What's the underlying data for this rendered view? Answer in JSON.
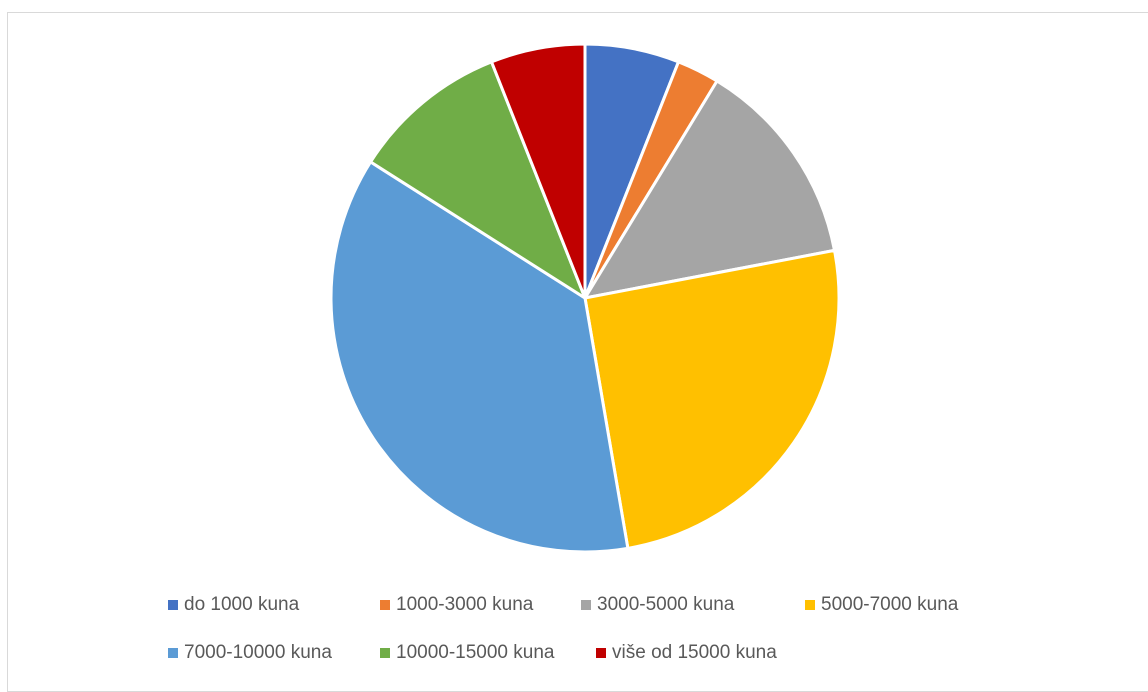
{
  "chart_data": {
    "type": "pie",
    "title": "",
    "legend_position": "bottom",
    "start_angle_deg": 0,
    "direction": "clockwise",
    "slices": [
      {
        "label": "do 1000 kuna",
        "value": 6.0,
        "color": "#4472C4"
      },
      {
        "label": "1000-3000 kuna",
        "value": 2.7,
        "color": "#ED7D31"
      },
      {
        "label": "3000-5000 kuna",
        "value": 13.3,
        "color": "#A5A5A5"
      },
      {
        "label": "5000-7000 kuna",
        "value": 25.3,
        "color": "#FFC000"
      },
      {
        "label": "7000-10000 kuna",
        "value": 36.7,
        "color": "#5B9BD5"
      },
      {
        "label": "10000-15000 kuna",
        "value": 10.0,
        "color": "#70AD47"
      },
      {
        "label": "više od 15000 kuna",
        "value": 6.0,
        "color": "#C00000"
      }
    ]
  }
}
